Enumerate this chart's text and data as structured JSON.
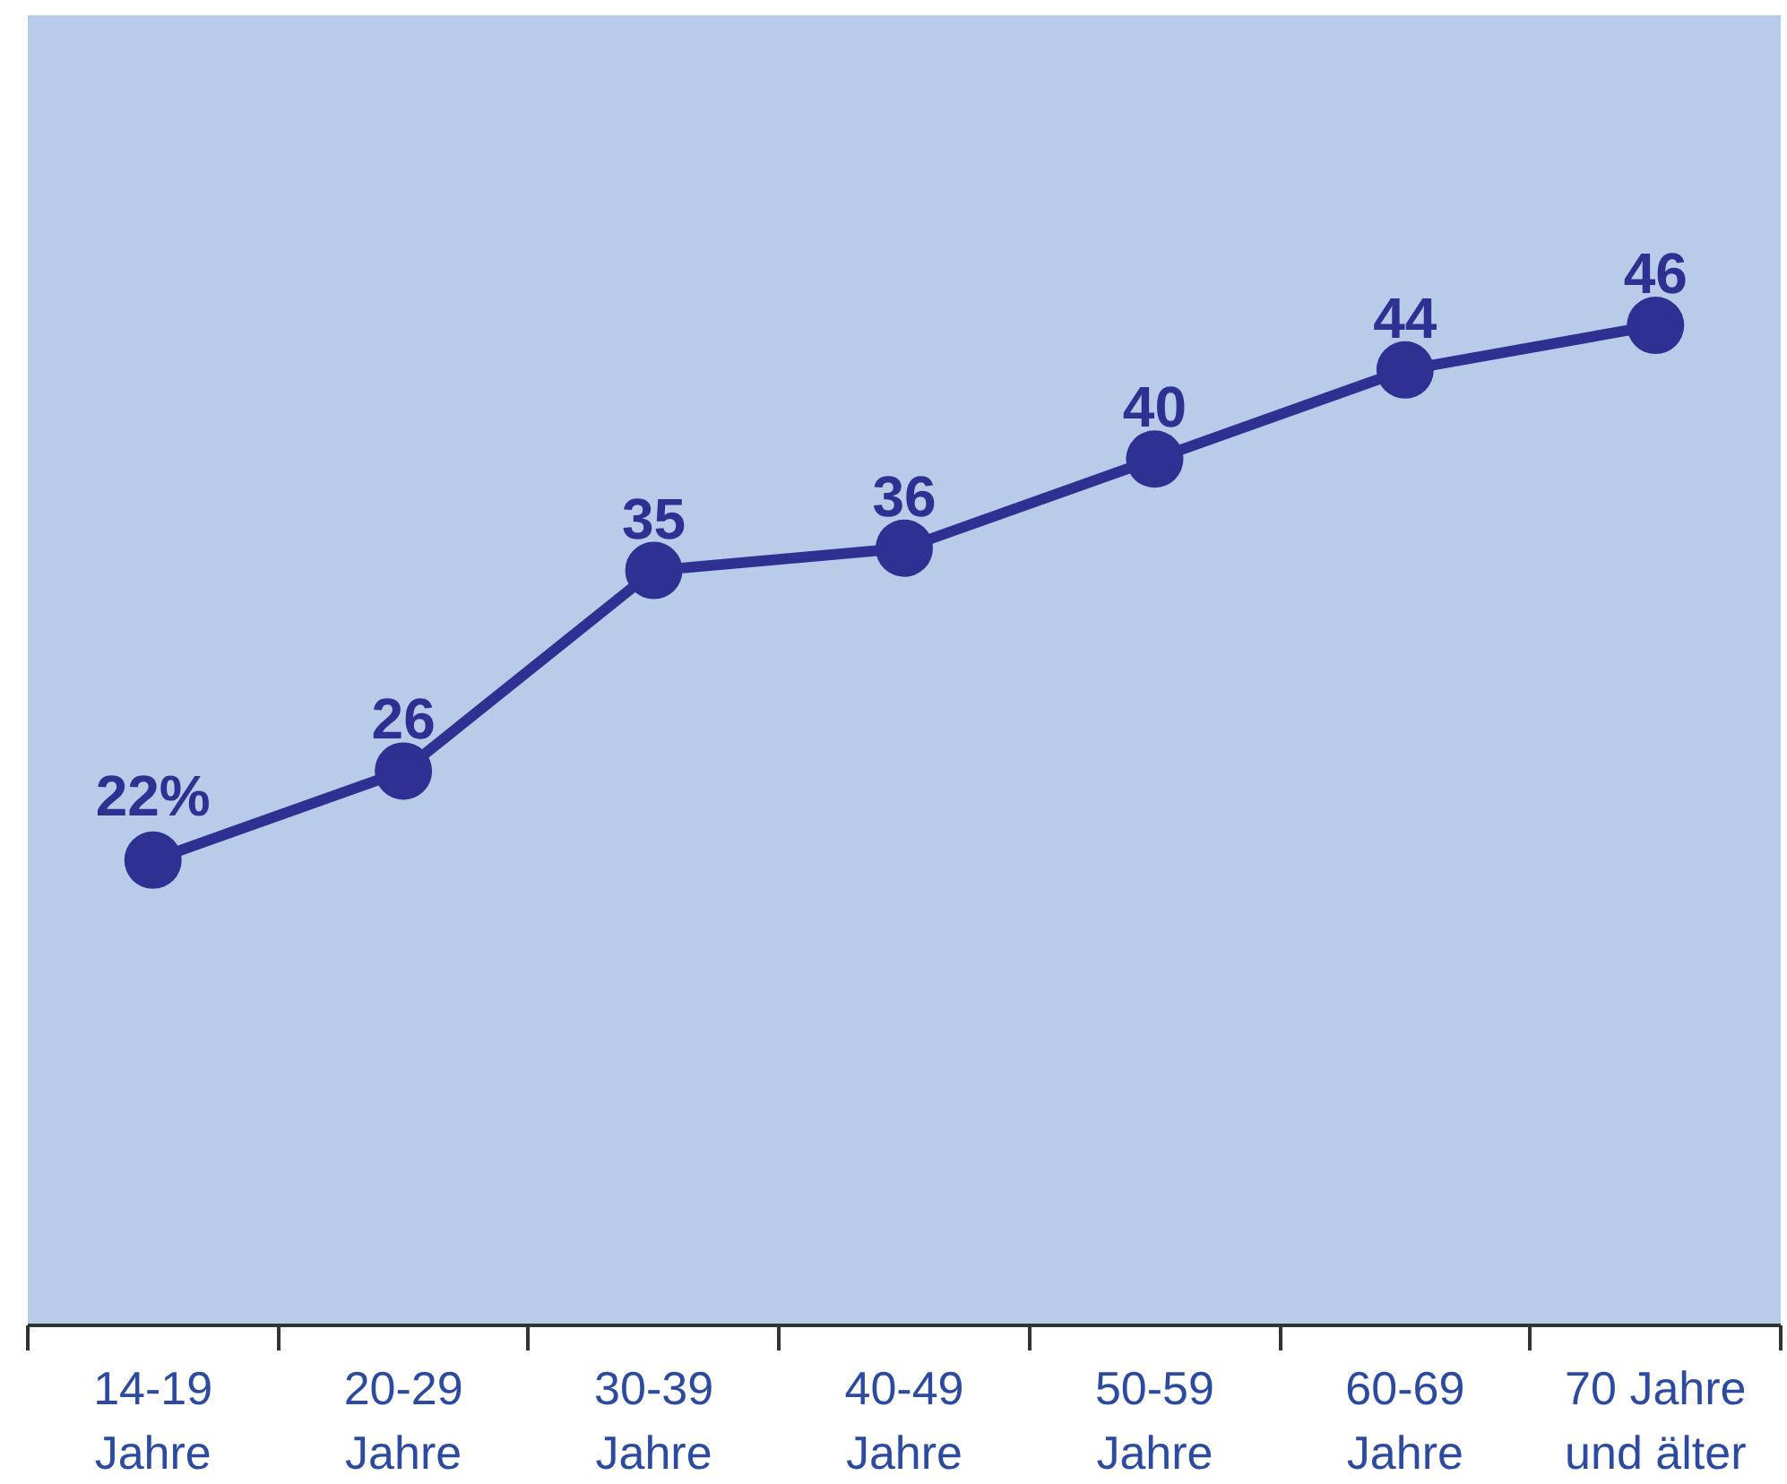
{
  "chart_data": {
    "type": "line",
    "categories": [
      "14-19\nJahre",
      "20-29\nJahre",
      "30-39\nJahre",
      "40-49\nJahre",
      "50-59\nJahre",
      "60-69\nJahre",
      "70 Jahre\nund älter"
    ],
    "series": [
      {
        "color": "#2e3192",
        "values": [
          22,
          26,
          35,
          36,
          40,
          44,
          46
        ],
        "value_labels": [
          "22%",
          "26",
          "35",
          "36",
          "40",
          "44",
          "46"
        ]
      }
    ],
    "marker": "circle",
    "line_style": "solid",
    "grid": false,
    "tick_labels": "x"
  }
}
